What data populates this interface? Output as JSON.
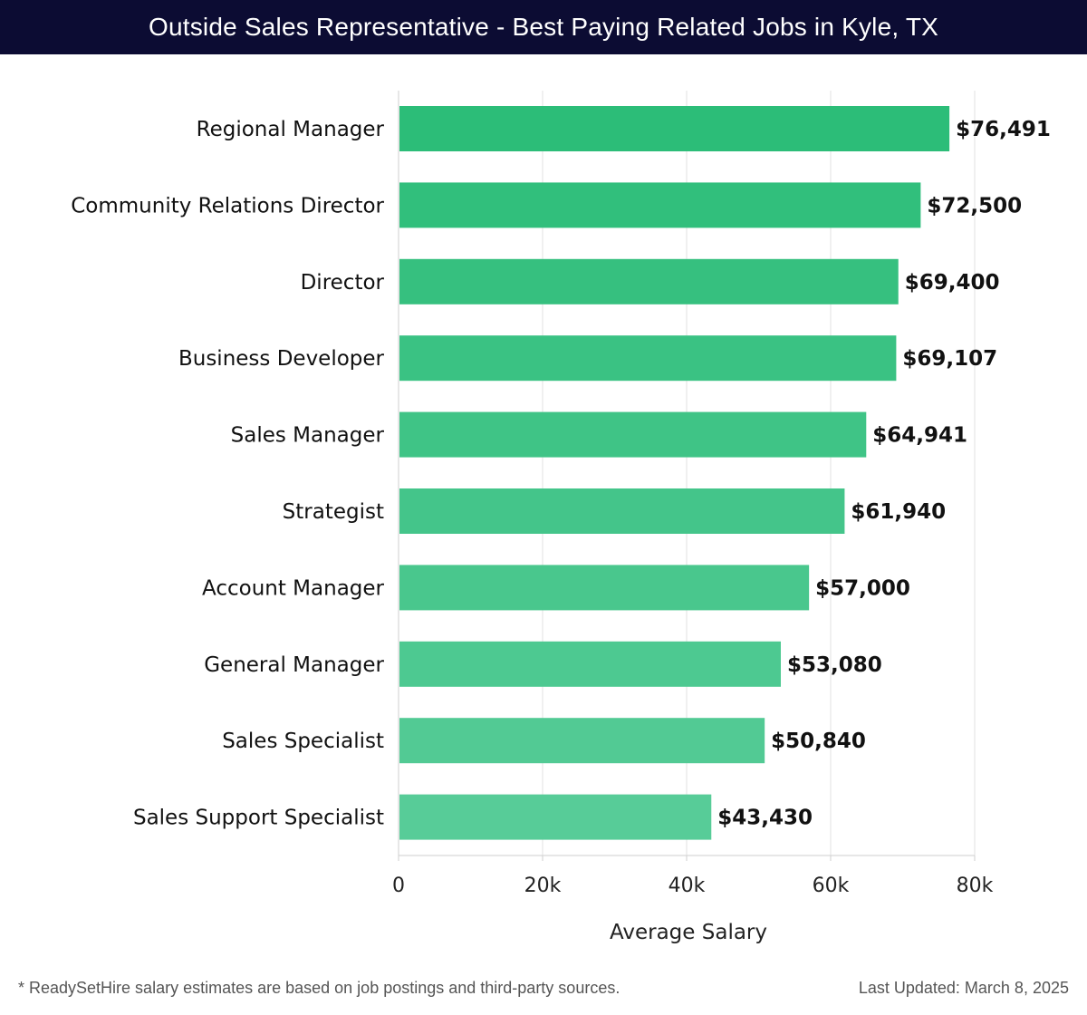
{
  "header": {
    "title": "Outside Sales Representative - Best Paying Related Jobs in Kyle, TX"
  },
  "chart_data": {
    "type": "bar",
    "orientation": "horizontal",
    "title": "Outside Sales Representative - Best Paying Related Jobs in Kyle, TX",
    "xlabel": "Average Salary",
    "ylabel": "",
    "xlim": [
      0,
      80000
    ],
    "xticks": [
      {
        "value": 0,
        "label": "0"
      },
      {
        "value": 20000,
        "label": "20k"
      },
      {
        "value": 40000,
        "label": "40k"
      },
      {
        "value": 60000,
        "label": "60k"
      },
      {
        "value": 80000,
        "label": "80k"
      }
    ],
    "grid": true,
    "categories": [
      "Regional Manager",
      "Community Relations Director",
      "Director",
      "Business Developer",
      "Sales Manager",
      "Strategist",
      "Account Manager",
      "General Manager",
      "Sales Specialist",
      "Sales Support Specialist"
    ],
    "values": [
      76491,
      72500,
      69400,
      69107,
      64941,
      61940,
      57000,
      53080,
      50840,
      43430
    ],
    "value_labels": [
      "$76,491",
      "$72,500",
      "$69,400",
      "$69,107",
      "$64,941",
      "$61,940",
      "$57,000",
      "$53,080",
      "$50,840",
      "$43,430"
    ],
    "colors": {
      "bar_start": "#2cbd78",
      "bar_end": "#57cc98",
      "grid": "#e2e2e2",
      "axis": "#cfcfcf"
    }
  },
  "footer": {
    "note": "* ReadySetHire salary estimates are based on job postings and third-party sources.",
    "updated": "Last Updated: March 8, 2025"
  }
}
